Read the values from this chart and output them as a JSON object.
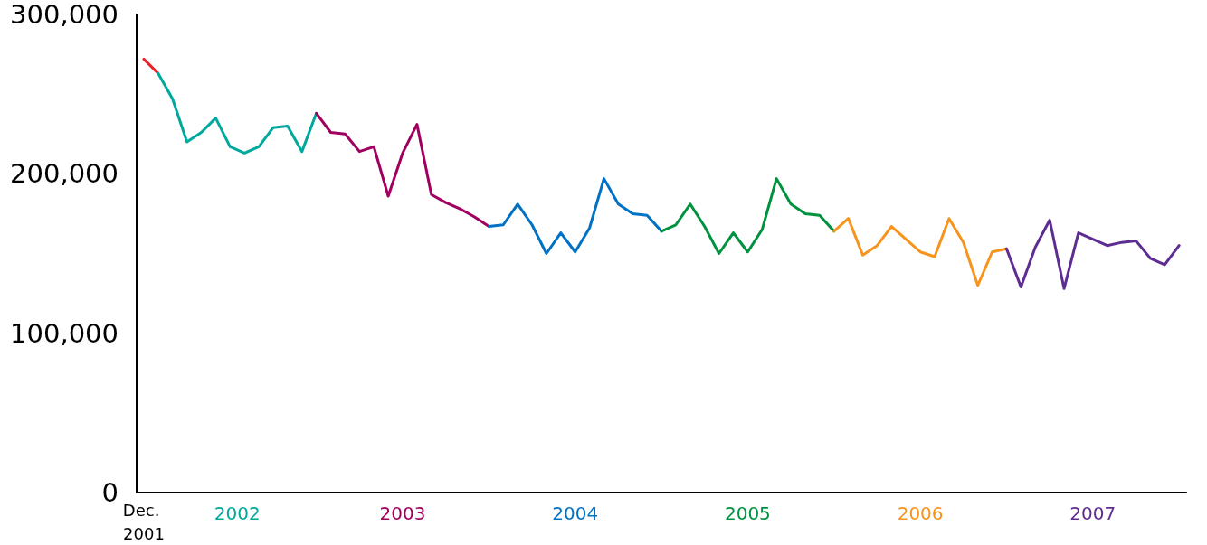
{
  "chart_data": {
    "type": "line",
    "categories": [
      "Dec. 2001",
      null,
      null,
      null,
      null,
      null,
      null,
      null,
      null,
      null,
      null,
      null,
      null,
      null,
      null,
      null,
      null,
      null,
      null,
      null,
      null,
      null,
      null,
      null,
      null,
      null,
      null,
      null,
      null,
      null,
      null,
      null,
      null,
      null,
      null,
      null,
      null,
      null,
      null,
      null,
      null,
      null,
      null,
      null,
      null,
      null,
      null,
      null,
      null,
      null,
      null,
      null,
      null,
      null,
      null,
      null,
      null,
      null,
      null,
      null,
      null,
      null,
      null,
      null,
      null,
      null,
      null,
      null,
      null,
      null,
      null,
      null,
      null
    ],
    "ylim": [
      0,
      300000
    ],
    "yticks": [
      0,
      {
        "value": 100000,
        "label": "100,000"
      },
      {
        "value": 200000,
        "label": "200,000"
      },
      {
        "value": 300000,
        "label": "300,000"
      }
    ],
    "grid": false,
    "legend": false,
    "marker": "none",
    "line_style": "solid",
    "series": [
      {
        "color": "#e8202a",
        "values": [
          272000,
          263000,
          null,
          null,
          null,
          null,
          null,
          null,
          null,
          null,
          null,
          null,
          null,
          null,
          null,
          null,
          null,
          null,
          null,
          null,
          null,
          null,
          null,
          null,
          null,
          null,
          null,
          null,
          null,
          null,
          null,
          null,
          null,
          null,
          null,
          null,
          null,
          null,
          null,
          null,
          null,
          null,
          null,
          null,
          null,
          null,
          null,
          null,
          null,
          null,
          null,
          null,
          null,
          null,
          null,
          null,
          null,
          null,
          null,
          null,
          null,
          null,
          null,
          null,
          null,
          null,
          null,
          null,
          null,
          null,
          null,
          null,
          null
        ]
      },
      {
        "name": "2002",
        "color": "#00a99d",
        "values": [
          null,
          263000,
          247000,
          220000,
          226000,
          235000,
          217000,
          213000,
          217000,
          229000,
          230000,
          214000,
          238000,
          null,
          null,
          null,
          null,
          null,
          null,
          null,
          null,
          null,
          null,
          null,
          null,
          null,
          null,
          null,
          null,
          null,
          null,
          null,
          null,
          null,
          null,
          null,
          null,
          null,
          null,
          null,
          null,
          null,
          null,
          null,
          null,
          null,
          null,
          null,
          null,
          null,
          null,
          null,
          null,
          null,
          null,
          null,
          null,
          null,
          null,
          null,
          null,
          null,
          null,
          null,
          null,
          null,
          null,
          null,
          null,
          null,
          null,
          null,
          null
        ]
      },
      {
        "name": "2003",
        "color": "#a0005f",
        "values": [
          null,
          null,
          null,
          null,
          null,
          null,
          null,
          null,
          null,
          null,
          null,
          null,
          238000,
          226000,
          225000,
          214000,
          217000,
          186000,
          213000,
          231000,
          187000,
          182000,
          178000,
          173000,
          167000,
          null,
          null,
          null,
          null,
          null,
          null,
          null,
          null,
          null,
          null,
          null,
          null,
          null,
          null,
          null,
          null,
          null,
          null,
          null,
          null,
          null,
          null,
          null,
          null,
          null,
          null,
          null,
          null,
          null,
          null,
          null,
          null,
          null,
          null,
          null,
          null,
          null,
          null,
          null,
          null,
          null,
          null,
          null,
          null,
          null,
          null,
          null,
          null
        ]
      },
      {
        "name": "2004",
        "color": "#0072c6",
        "values": [
          null,
          null,
          null,
          null,
          null,
          null,
          null,
          null,
          null,
          null,
          null,
          null,
          null,
          null,
          null,
          null,
          null,
          null,
          null,
          null,
          null,
          null,
          null,
          null,
          167000,
          168000,
          181000,
          168000,
          150000,
          163000,
          151000,
          166000,
          197000,
          181000,
          175000,
          174000,
          164000,
          null,
          null,
          null,
          null,
          null,
          null,
          null,
          null,
          null,
          null,
          null,
          null,
          null,
          null,
          null,
          null,
          null,
          null,
          null,
          null,
          null,
          null,
          null,
          null,
          null,
          null,
          null,
          null,
          null,
          null,
          null,
          null,
          null,
          null,
          null,
          null
        ]
      },
      {
        "name": "2005",
        "color": "#00923f",
        "values": [
          null,
          null,
          null,
          null,
          null,
          null,
          null,
          null,
          null,
          null,
          null,
          null,
          null,
          null,
          null,
          null,
          null,
          null,
          null,
          null,
          null,
          null,
          null,
          null,
          null,
          null,
          null,
          null,
          null,
          null,
          null,
          null,
          null,
          null,
          null,
          null,
          164000,
          168000,
          181000,
          167000,
          150000,
          163000,
          151000,
          165000,
          197000,
          181000,
          175000,
          174000,
          164000,
          null,
          null,
          null,
          null,
          null,
          null,
          null,
          null,
          null,
          null,
          null,
          null,
          null,
          null,
          null,
          null,
          null,
          null,
          null,
          null,
          null,
          null,
          null,
          null
        ]
      },
      {
        "name": "2006",
        "color": "#f7941d",
        "values": [
          null,
          null,
          null,
          null,
          null,
          null,
          null,
          null,
          null,
          null,
          null,
          null,
          null,
          null,
          null,
          null,
          null,
          null,
          null,
          null,
          null,
          null,
          null,
          null,
          null,
          null,
          null,
          null,
          null,
          null,
          null,
          null,
          null,
          null,
          null,
          null,
          null,
          null,
          null,
          null,
          null,
          null,
          null,
          null,
          null,
          null,
          null,
          null,
          164000,
          172000,
          149000,
          155000,
          167000,
          159000,
          151000,
          148000,
          172000,
          157000,
          130000,
          151000,
          153000,
          null,
          null,
          null,
          null,
          null,
          null,
          null,
          null,
          null,
          null,
          null,
          null
        ]
      },
      {
        "name": "2007",
        "color": "#5e2d91",
        "values": [
          null,
          null,
          null,
          null,
          null,
          null,
          null,
          null,
          null,
          null,
          null,
          null,
          null,
          null,
          null,
          null,
          null,
          null,
          null,
          null,
          null,
          null,
          null,
          null,
          null,
          null,
          null,
          null,
          null,
          null,
          null,
          null,
          null,
          null,
          null,
          null,
          null,
          null,
          null,
          null,
          null,
          null,
          null,
          null,
          null,
          null,
          null,
          null,
          null,
          null,
          null,
          null,
          null,
          null,
          null,
          null,
          null,
          null,
          null,
          null,
          153000,
          129000,
          154000,
          171000,
          128000,
          163000,
          159000,
          155000,
          157000,
          158000,
          147000,
          143000,
          155000
        ]
      }
    ]
  }
}
